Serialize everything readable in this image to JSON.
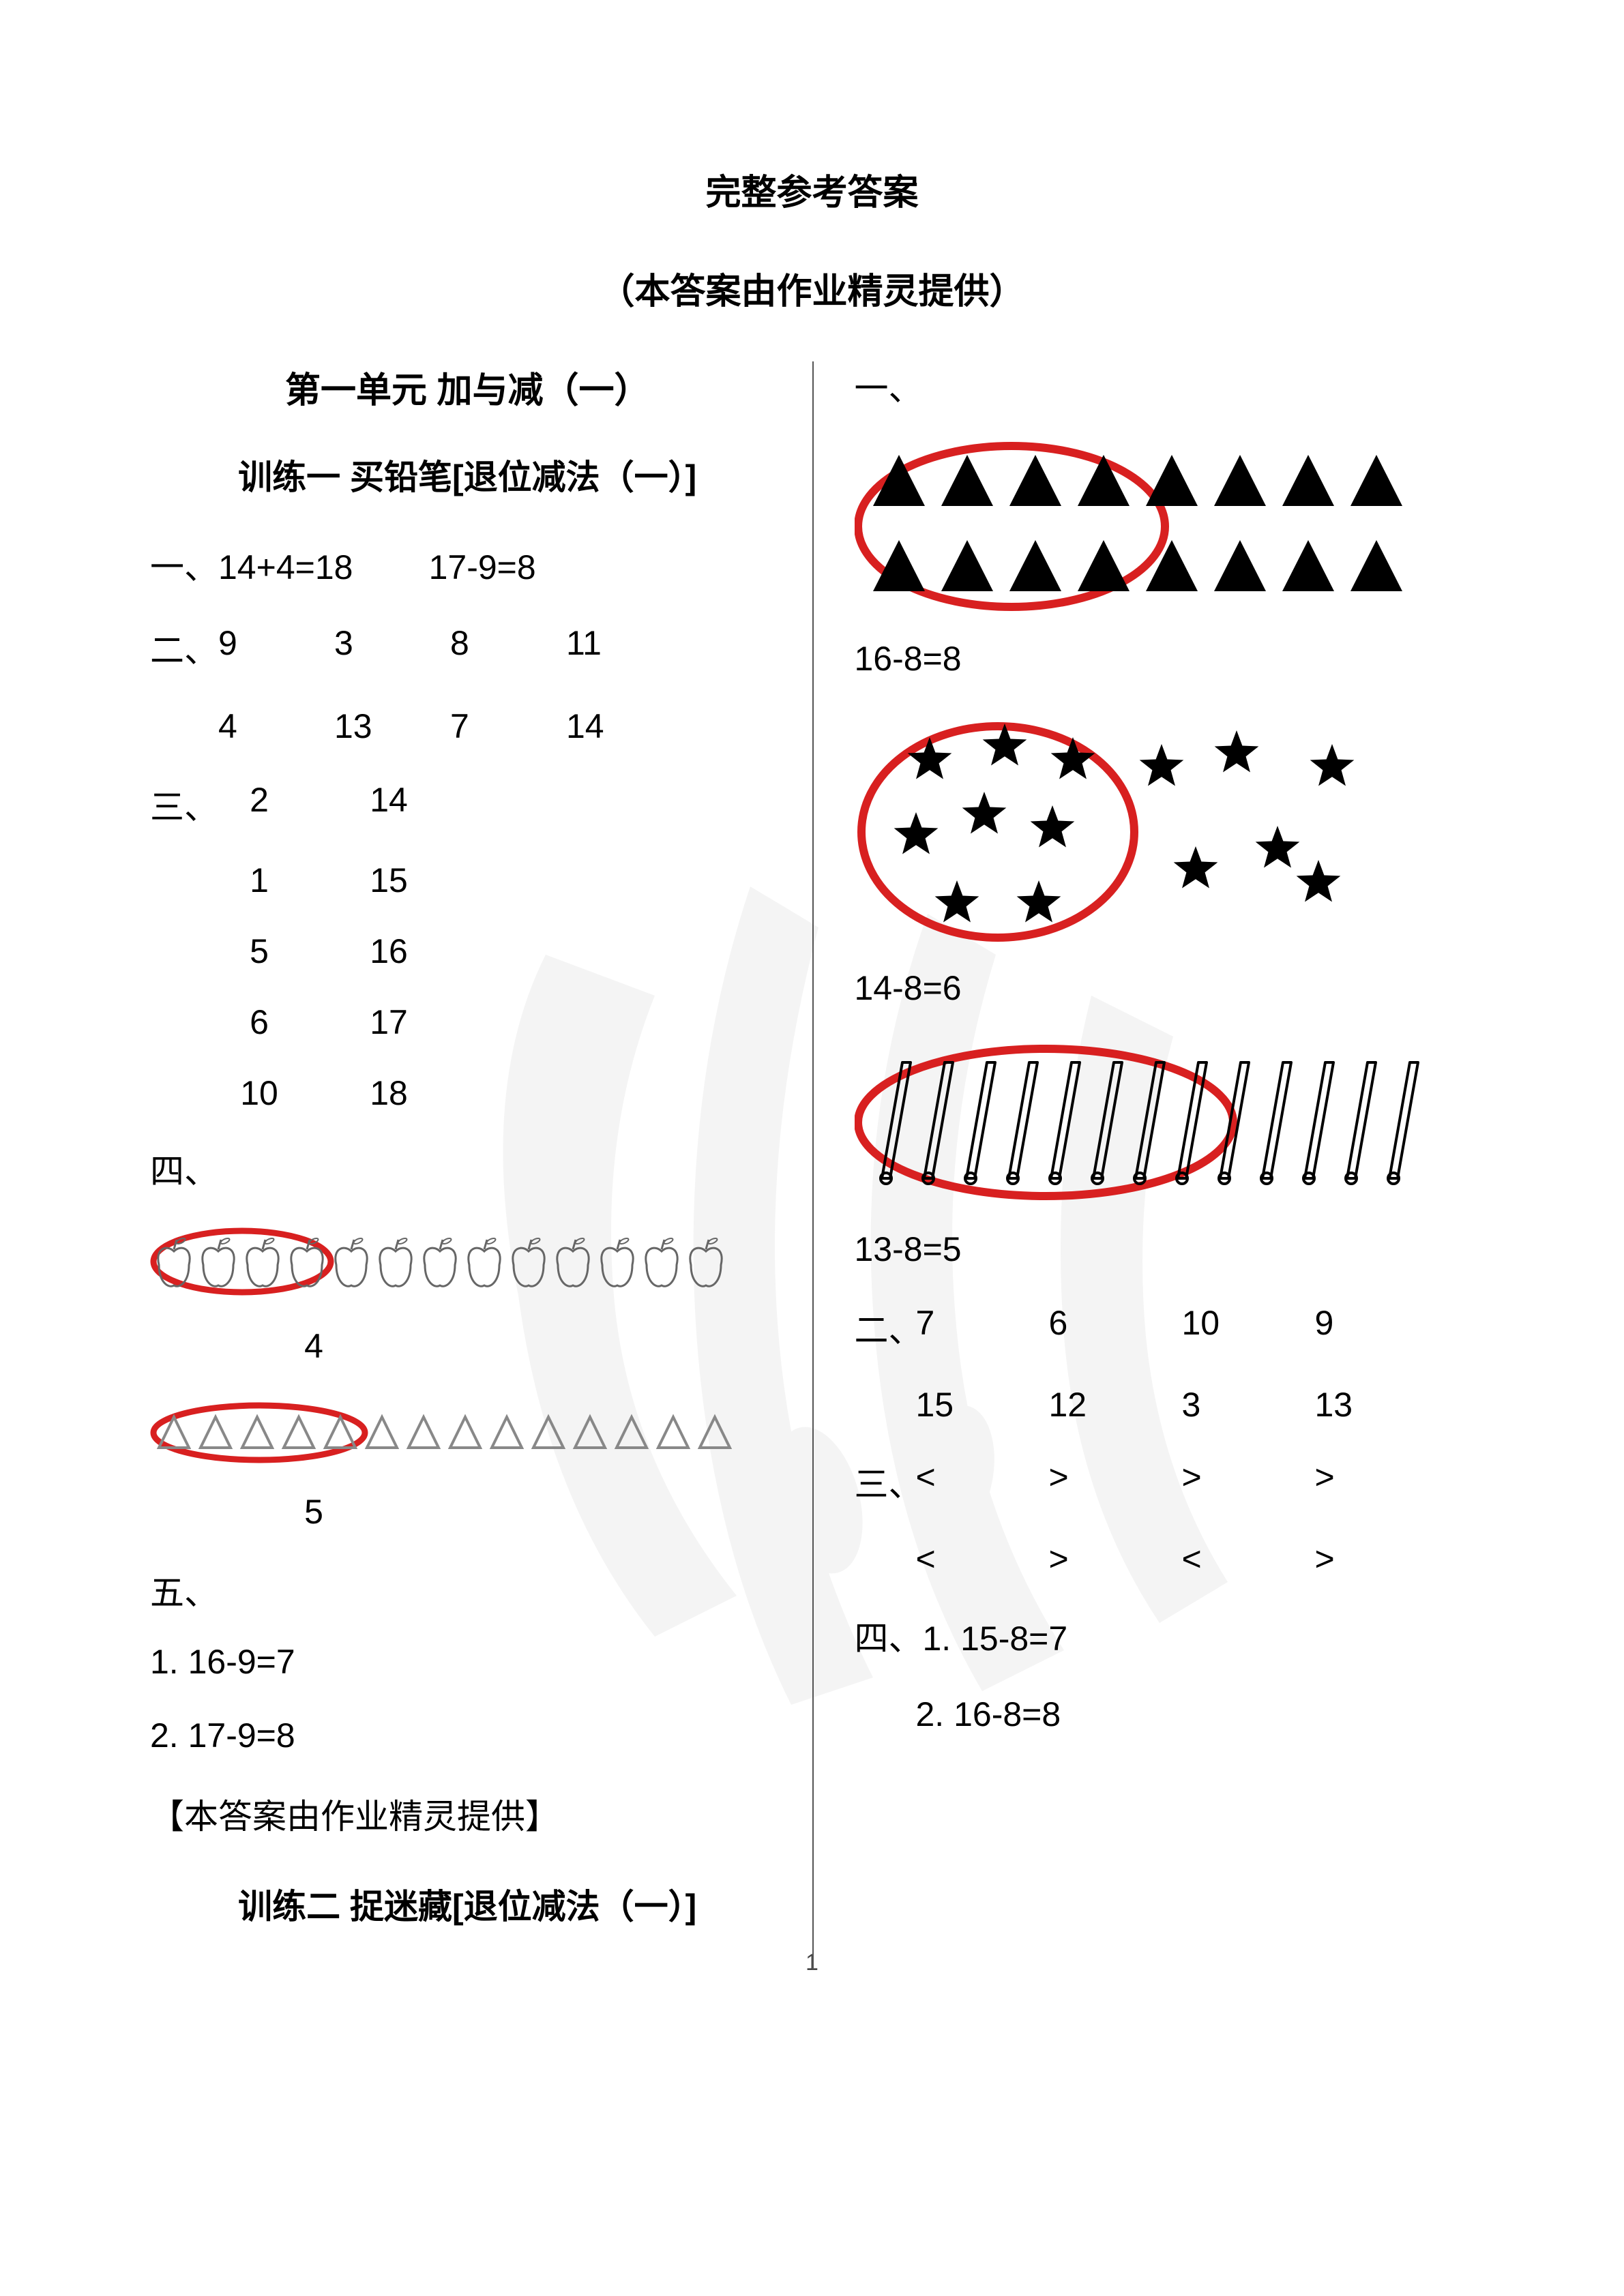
{
  "header": {
    "main_title": "完整参考答案",
    "sub_title": "（本答案由作业精灵提供）"
  },
  "left": {
    "unit_title": "第一单元  加与减（一）",
    "training1_title": "训练一  买铅笔[退位减法（一）]",
    "s1_label": "一、",
    "s1_eq1": "14+4=18",
    "s1_eq2": "17-9=8",
    "s2_label": "二、",
    "s2_row1": [
      "9",
      "3",
      "8",
      "11"
    ],
    "s2_row2": [
      "4",
      "13",
      "7",
      "14"
    ],
    "s3_label": "三、",
    "s3_pairs": [
      [
        "2",
        "14"
      ],
      [
        "1",
        "15"
      ],
      [
        "5",
        "16"
      ],
      [
        "6",
        "17"
      ],
      [
        "10",
        "18"
      ]
    ],
    "s4_label": "四、",
    "s4_fig1": {
      "apple_count": 13,
      "circled_count": 4,
      "circle_color": "#d82020",
      "caption": "4"
    },
    "s4_fig2": {
      "tri_count": 14,
      "circled_count": 5,
      "tri_color": "#888888",
      "circle_color": "#d82020",
      "caption": "5"
    },
    "s5_label": "五、",
    "s5_items": [
      "1. 16-9=7",
      "2. 17-9=8"
    ],
    "note": "【本答案由作业精灵提供】",
    "training2_title": "训练二  捉迷藏[退位减法（一）]"
  },
  "right": {
    "s1_label": "一、",
    "fig_triangles": {
      "rows": 2,
      "cols": 8,
      "circled_cols": 4,
      "circle_color": "#d82020",
      "shape_color": "#000000",
      "caption": "16-8=8"
    },
    "fig_stars": {
      "total": 14,
      "circled": 8,
      "circle_color": "#d82020",
      "shape_color": "#000000",
      "caption": "14-8=6"
    },
    "fig_sticks": {
      "total": 13,
      "circled": 8,
      "circle_color": "#d82020",
      "shape_color": "#000000",
      "caption": "13-8=5"
    },
    "s2_label": "二、",
    "s2_row1": [
      "7",
      "6",
      "10",
      "9"
    ],
    "s2_row2": [
      "15",
      "12",
      "3",
      "13"
    ],
    "s3_label": "三、",
    "s3_row1": [
      "<",
      ">",
      ">",
      ">"
    ],
    "s3_row2": [
      "<",
      ">",
      "<",
      ">"
    ],
    "s4_label": "四、",
    "s4_items": [
      "1. 15-8=7",
      "2. 16-8=8"
    ]
  },
  "page_number": "1",
  "colors": {
    "text": "#000000",
    "divider": "#555555",
    "watermark": "#7a7a7a"
  }
}
